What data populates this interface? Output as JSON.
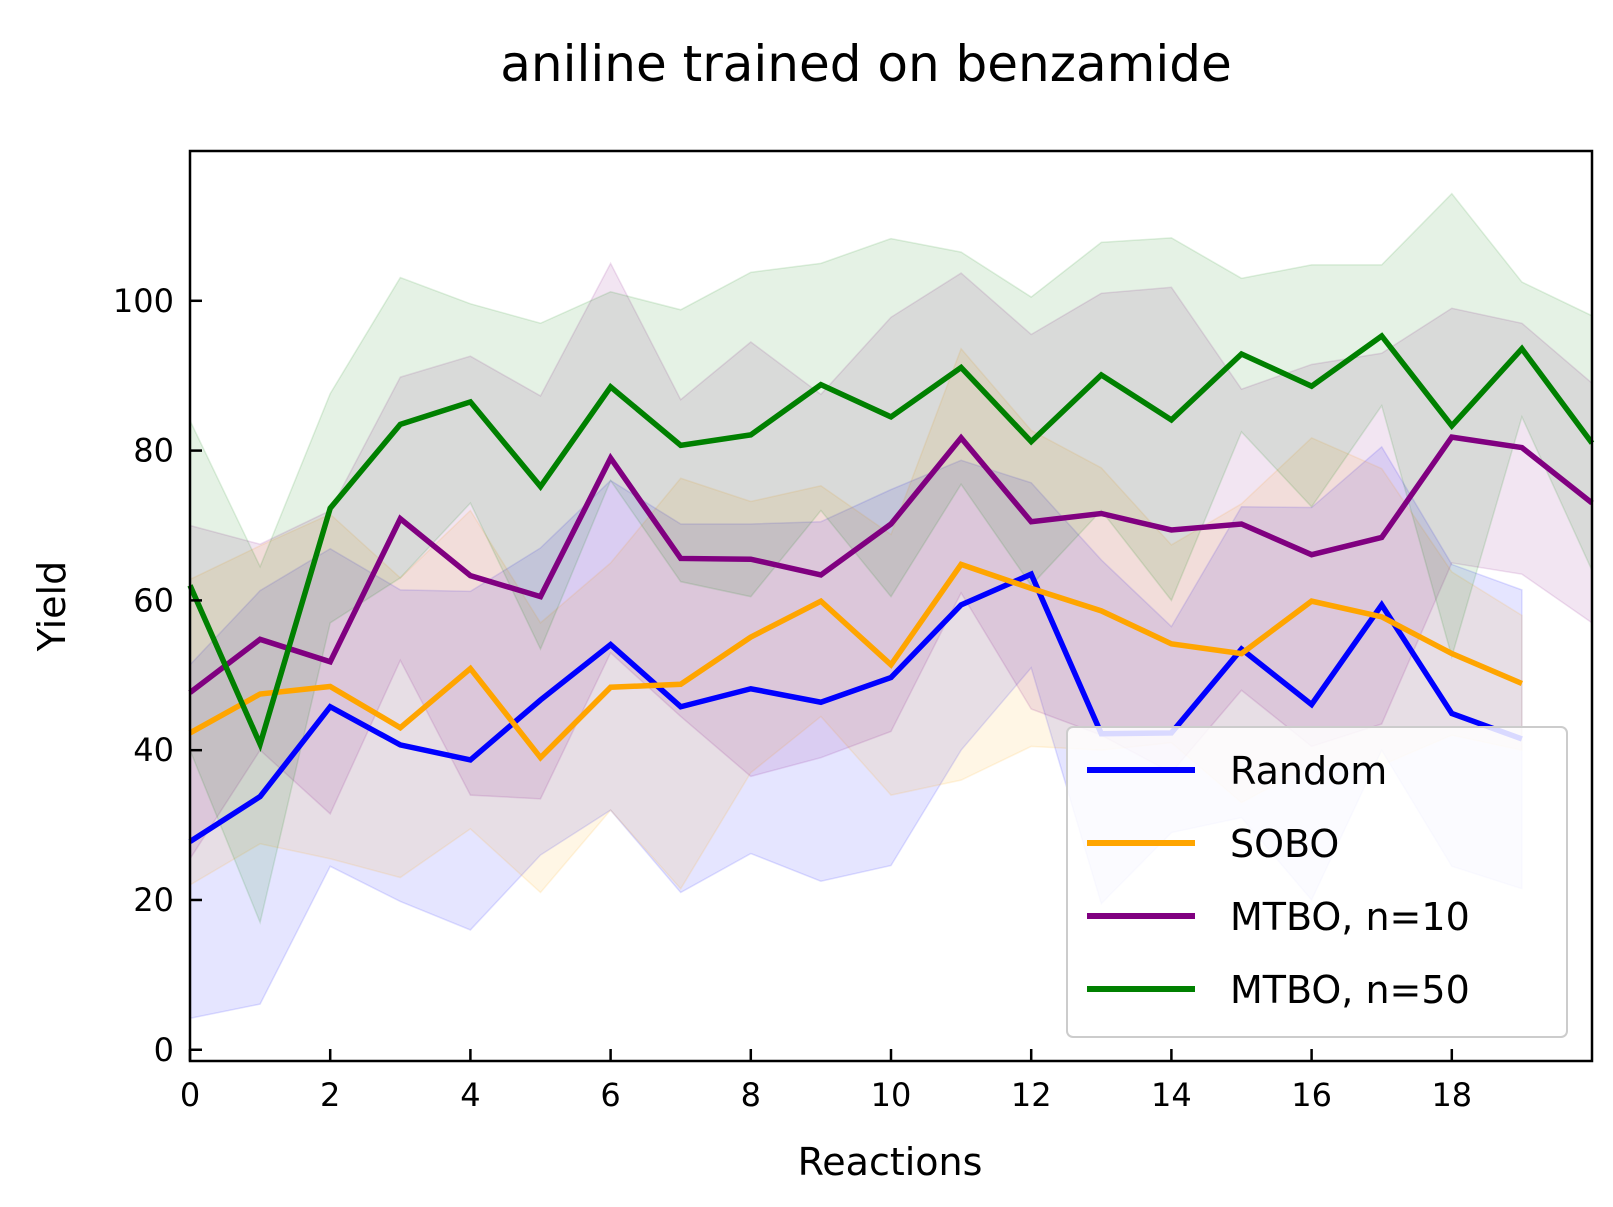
{
  "chart_data": {
    "type": "line",
    "title": "aniline trained on benzamide",
    "xlabel": "Reactions",
    "ylabel": "Yield",
    "xlim": [
      0,
      20
    ],
    "ylim": [
      -1.5,
      120
    ],
    "xticks": [
      0,
      2,
      4,
      6,
      8,
      10,
      12,
      14,
      16,
      18
    ],
    "yticks": [
      0,
      20,
      40,
      60,
      80,
      100
    ],
    "grid": false,
    "legend_position": "lower-right",
    "series": [
      {
        "name": "Random",
        "color": "#0000ff",
        "x": [
          0,
          1,
          2,
          3,
          4,
          5,
          6,
          7,
          8,
          9,
          10,
          11,
          12,
          13,
          14,
          15,
          16,
          17,
          18,
          19
        ],
        "y": [
          27.8,
          33.8,
          45.8,
          40.7,
          38.7,
          46.7,
          54.1,
          45.8,
          48.2,
          46.4,
          49.7,
          59.4,
          63.5,
          42.2,
          42.3,
          53.5,
          46.1,
          59.4,
          44.9,
          41.5
        ],
        "lower": [
          4.2,
          6.1,
          24.5,
          19.8,
          16.0,
          26.0,
          32.0,
          21.0,
          26.2,
          22.5,
          24.6,
          40.0,
          51.0,
          19.5,
          29.0,
          31.0,
          20.0,
          40.0,
          24.5,
          21.5
        ],
        "upper": [
          51.4,
          61.3,
          66.9,
          61.4,
          61.2,
          67.0,
          76.0,
          70.2,
          70.2,
          70.5,
          74.8,
          78.7,
          75.7,
          65.4,
          56.5,
          72.5,
          72.4,
          80.5,
          64.8,
          61.4
        ]
      },
      {
        "name": "SOBO",
        "color": "#ffa500",
        "x": [
          0,
          1,
          2,
          3,
          4,
          5,
          6,
          7,
          8,
          9,
          10,
          11,
          12,
          13,
          14,
          15,
          16,
          17,
          18,
          19
        ],
        "y": [
          42.3,
          47.5,
          48.5,
          43.0,
          50.9,
          39.0,
          48.4,
          48.8,
          55.1,
          59.9,
          51.4,
          64.8,
          61.6,
          58.6,
          54.2,
          52.9,
          59.9,
          57.8,
          52.9,
          48.9
        ],
        "lower": [
          22.0,
          27.5,
          25.5,
          23.0,
          29.5,
          21.0,
          32.0,
          21.5,
          37.0,
          44.5,
          34.0,
          36.0,
          40.5,
          40.0,
          41.0,
          33.0,
          38.0,
          38.0,
          42.0,
          40.0
        ],
        "upper": [
          62.8,
          67.3,
          71.5,
          63.0,
          72.0,
          57.0,
          65.0,
          76.3,
          73.2,
          75.3,
          68.8,
          93.6,
          82.7,
          77.7,
          67.4,
          72.9,
          81.7,
          77.6,
          63.8,
          58.0
        ]
      },
      {
        "name": "MTBO, n=10",
        "color": "#800080",
        "x": [
          0,
          1,
          2,
          3,
          4,
          5,
          6,
          7,
          8,
          9,
          10,
          11,
          12,
          13,
          14,
          15,
          16,
          17,
          18,
          19,
          20
        ],
        "y": [
          47.7,
          54.8,
          51.8,
          70.9,
          63.3,
          60.5,
          79.0,
          65.6,
          65.5,
          63.4,
          70.2,
          81.7,
          70.5,
          71.6,
          69.4,
          70.2,
          66.1,
          68.4,
          81.8,
          80.4,
          73.0
        ],
        "lower": [
          25.5,
          40.0,
          31.5,
          52.0,
          34.0,
          33.5,
          53.0,
          44.5,
          36.5,
          39.0,
          42.5,
          61.0,
          45.5,
          42.0,
          37.0,
          48.0,
          40.5,
          43.5,
          65.0,
          63.5,
          57.0
        ],
        "upper": [
          70.0,
          67.5,
          72.0,
          89.8,
          92.6,
          87.3,
          105.0,
          86.8,
          94.5,
          87.5,
          97.8,
          103.7,
          95.5,
          101.0,
          101.8,
          88.2,
          91.5,
          93.0,
          99.0,
          97.0,
          89.0
        ]
      },
      {
        "name": "MTBO, n=50",
        "color": "#008000",
        "x": [
          0,
          1,
          2,
          3,
          4,
          5,
          6,
          7,
          8,
          9,
          10,
          11,
          12,
          13,
          14,
          15,
          16,
          17,
          18,
          19,
          20
        ],
        "y": [
          62.0,
          40.8,
          72.3,
          83.5,
          86.5,
          75.2,
          88.5,
          80.7,
          82.1,
          88.8,
          84.5,
          91.1,
          81.2,
          90.1,
          84.1,
          92.9,
          88.6,
          95.3,
          83.3,
          93.6,
          81.0
        ],
        "lower": [
          40.0,
          17.0,
          57.0,
          63.0,
          73.0,
          53.5,
          76.0,
          62.5,
          60.5,
          72.0,
          60.5,
          75.5,
          62.0,
          72.0,
          60.0,
          82.5,
          72.5,
          86.0,
          52.5,
          84.5,
          64.0
        ],
        "upper": [
          84.0,
          64.5,
          87.6,
          103.1,
          99.6,
          97.0,
          101.2,
          98.8,
          103.8,
          105.0,
          108.3,
          106.5,
          100.5,
          107.8,
          108.4,
          103.0,
          104.8,
          104.8,
          114.3,
          102.5,
          98.0
        ]
      }
    ]
  }
}
